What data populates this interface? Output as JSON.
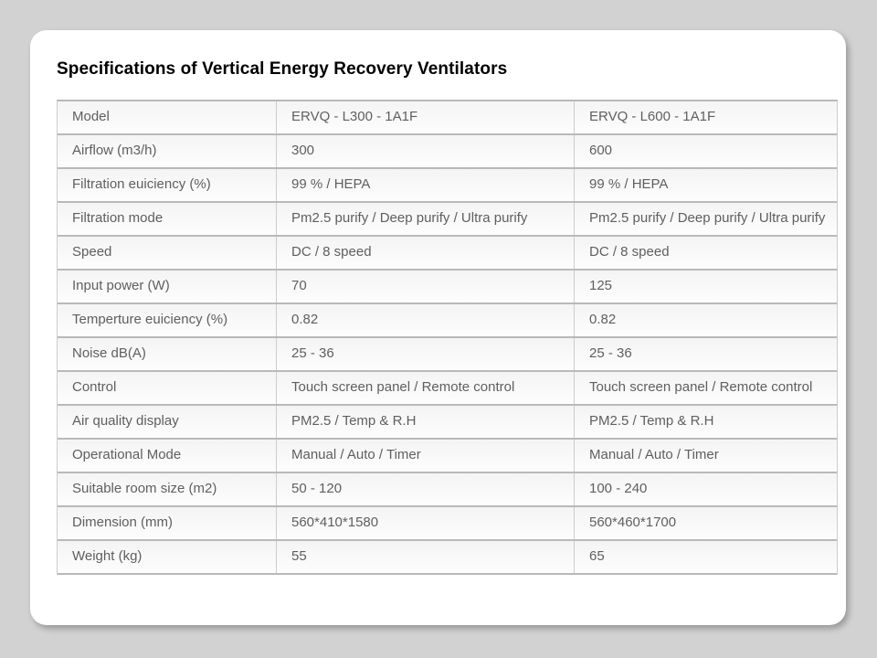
{
  "slide": {
    "title": "Specifications of Vertical Energy Recovery Ventilators"
  },
  "colors": {
    "background": "#d2d2d2",
    "card": "#ffffff",
    "row_border": "#b9b9b9",
    "column_border": "#cccccc",
    "cell_text": "#5f5f5f",
    "title_text": "#000000"
  },
  "table": {
    "rows": [
      {
        "label": "Model",
        "l300": "ERVQ - L300 - 1A1F",
        "l600": "ERVQ - L600 - 1A1F"
      },
      {
        "label": "Airflow (m3/h)",
        "l300": "300",
        "l600": "600"
      },
      {
        "label": "Filtration euiciency (%)",
        "l300": "99 % / HEPA",
        "l600": "99 % / HEPA"
      },
      {
        "label": "Filtration mode",
        "l300": "Pm2.5 purify / Deep purify / Ultra purify",
        "l600": "Pm2.5 purify / Deep purify / Ultra purify"
      },
      {
        "label": "Speed",
        "l300": "DC / 8 speed",
        "l600": "DC / 8 speed"
      },
      {
        "label": "Input power (W)",
        "l300": "70",
        "l600": "125"
      },
      {
        "label": "Temperture euiciency (%)",
        "l300": "0.82",
        "l600": "0.82"
      },
      {
        "label": "Noise dB(A)",
        "l300": "25 - 36",
        "l600": "25 - 36"
      },
      {
        "label": "Control",
        "l300": "Touch screen panel / Remote control",
        "l600": "Touch screen panel / Remote control"
      },
      {
        "label": "Air quality display",
        "l300": "PM2.5 / Temp & R.H",
        "l600": "PM2.5 / Temp & R.H"
      },
      {
        "label": "Operational Mode",
        "l300": "Manual / Auto / Timer",
        "l600": "Manual / Auto / Timer"
      },
      {
        "label": "Suitable room size (m2)",
        "l300": "50 - 120",
        "l600": "100 - 240"
      },
      {
        "label": "Dimension (mm)",
        "l300": "560*410*1580",
        "l600": "560*460*1700"
      },
      {
        "label": "Weight (kg)",
        "l300": "55",
        "l600": "65"
      }
    ]
  }
}
